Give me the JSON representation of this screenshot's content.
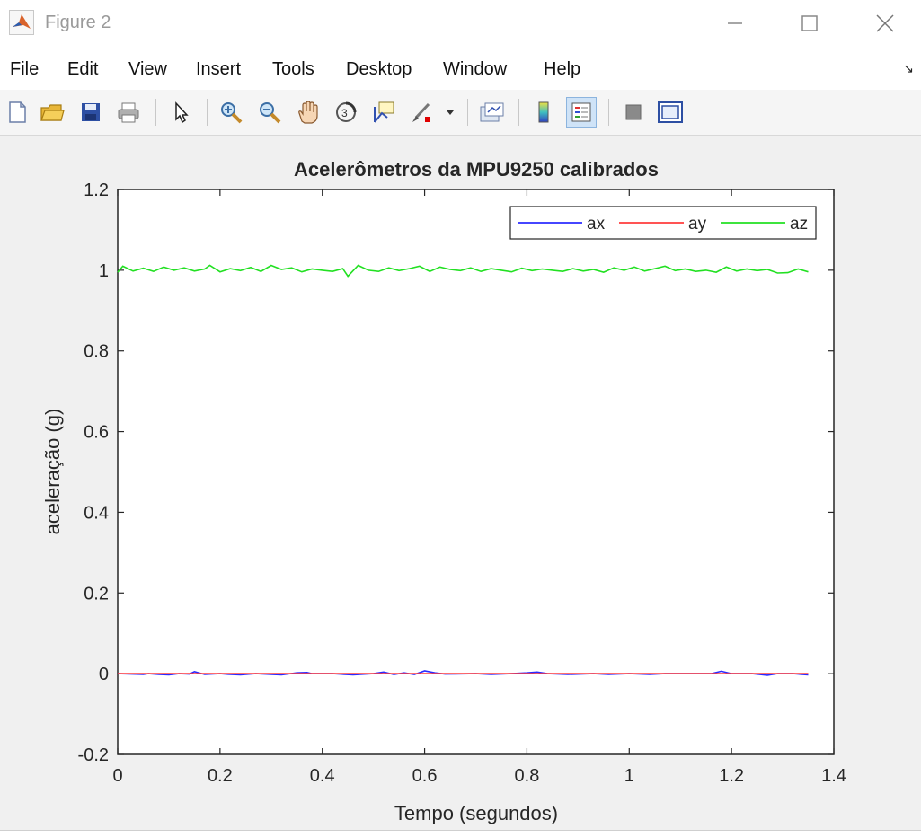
{
  "window": {
    "title": "Figure 2",
    "controls": {
      "minimize_icon": "minimize-icon",
      "maximize_icon": "maximize-icon",
      "close_icon": "close-icon"
    }
  },
  "menubar": {
    "items": [
      "File",
      "Edit",
      "View",
      "Insert",
      "Tools",
      "Desktop",
      "Window",
      "Help"
    ]
  },
  "toolbar": {
    "buttons": [
      "new-figure-icon",
      "open-file-icon",
      "save-icon",
      "print-icon",
      "edit-plot-icon",
      "zoom-in-icon",
      "zoom-out-icon",
      "pan-icon",
      "rotate-3d-icon",
      "data-cursor-icon",
      "brush-icon",
      "brush-dropdown-icon",
      "link-plot-icon",
      "colorbar-icon",
      "legend-icon",
      "hide-plot-tools-icon",
      "show-plot-tools-icon"
    ],
    "active": "legend-icon"
  },
  "chart_data": {
    "type": "line",
    "title": "Acelerômetros da MPU9250 calibrados",
    "xlabel": "Tempo (segundos)",
    "ylabel": "aceleração (g)",
    "xlim": [
      0,
      1.4
    ],
    "ylim": [
      -0.2,
      1.2
    ],
    "xticks": [
      "0",
      "0.2",
      "0.4",
      "0.6",
      "0.8",
      "1",
      "1.2",
      "1.4"
    ],
    "yticks": [
      "-0.2",
      "0",
      "0.2",
      "0.4",
      "0.6",
      "0.8",
      "1",
      "1.2"
    ],
    "grid": false,
    "legend_position": "top-right",
    "series": [
      {
        "name": "ax",
        "color": "#2b2bff",
        "x": [
          0,
          0.05,
          0.06,
          0.08,
          0.1,
          0.12,
          0.14,
          0.15,
          0.17,
          0.2,
          0.22,
          0.24,
          0.27,
          0.3,
          0.32,
          0.35,
          0.37,
          0.38,
          0.42,
          0.46,
          0.5,
          0.52,
          0.54,
          0.56,
          0.58,
          0.6,
          0.62,
          0.64,
          0.7,
          0.73,
          0.77,
          0.8,
          0.82,
          0.84,
          0.88,
          0.93,
          0.96,
          1.0,
          1.04,
          1.07,
          1.12,
          1.16,
          1.18,
          1.2,
          1.24,
          1.27,
          1.29,
          1.32,
          1.35
        ],
        "y": [
          0,
          -0.002,
          0,
          -0.002,
          -0.003,
          0,
          -0.001,
          0.005,
          -0.002,
          0,
          -0.002,
          -0.003,
          0,
          -0.002,
          -0.003,
          0.002,
          0.003,
          0,
          0,
          -0.003,
          0,
          0.004,
          -0.002,
          0.002,
          -0.002,
          0.007,
          0.002,
          -0.001,
          0,
          -0.002,
          0,
          0.002,
          0.004,
          0,
          -0.002,
          0,
          -0.002,
          0,
          -0.002,
          0,
          0,
          0,
          0.006,
          0,
          0,
          -0.004,
          0,
          0,
          -0.003
        ]
      },
      {
        "name": "ay",
        "color": "#ff3b3b",
        "x": [
          0,
          1.35
        ],
        "y": [
          0,
          0
        ]
      },
      {
        "name": "az",
        "color": "#22e022",
        "x": [
          0,
          0.01,
          0.03,
          0.05,
          0.07,
          0.09,
          0.11,
          0.13,
          0.15,
          0.17,
          0.18,
          0.2,
          0.22,
          0.24,
          0.26,
          0.28,
          0.3,
          0.32,
          0.34,
          0.36,
          0.38,
          0.4,
          0.42,
          0.44,
          0.45,
          0.47,
          0.49,
          0.51,
          0.53,
          0.55,
          0.57,
          0.59,
          0.61,
          0.63,
          0.65,
          0.67,
          0.69,
          0.71,
          0.73,
          0.75,
          0.77,
          0.79,
          0.81,
          0.83,
          0.85,
          0.87,
          0.89,
          0.91,
          0.93,
          0.95,
          0.97,
          0.99,
          1.01,
          1.03,
          1.05,
          1.07,
          1.09,
          1.11,
          1.13,
          1.15,
          1.17,
          1.19,
          1.21,
          1.23,
          1.25,
          1.27,
          1.29,
          1.31,
          1.33,
          1.35
        ],
        "y": [
          0.995,
          1.01,
          0.998,
          1.005,
          0.997,
          1.008,
          1.0,
          1.006,
          0.998,
          1.003,
          1.012,
          0.996,
          1.004,
          0.999,
          1.007,
          0.997,
          1.012,
          1.002,
          1.006,
          0.996,
          1.003,
          1.0,
          0.997,
          1.004,
          0.985,
          1.012,
          1.0,
          0.997,
          1.006,
          0.999,
          1.004,
          1.01,
          0.997,
          1.008,
          1.002,
          0.999,
          1.006,
          0.997,
          1.004,
          1.0,
          0.996,
          1.005,
          0.999,
          1.003,
          1.0,
          0.997,
          1.004,
          0.998,
          1.002,
          0.995,
          1.006,
          1.0,
          1.008,
          0.998,
          1.004,
          1.01,
          0.999,
          1.003,
          0.997,
          1.0,
          0.995,
          1.008,
          0.998,
          1.003,
          0.999,
          1.002,
          0.993,
          0.994,
          1.003,
          0.996
        ]
      }
    ]
  }
}
